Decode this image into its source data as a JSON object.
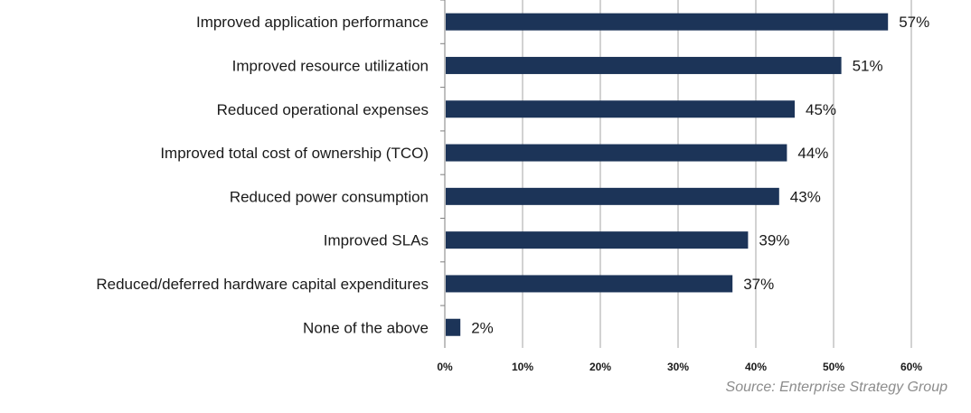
{
  "chart_data": {
    "type": "bar",
    "orientation": "horizontal",
    "categories": [
      "Improved application performance",
      "Improved resource utilization",
      "Reduced operational expenses",
      "Improved total cost of ownership (TCO)",
      "Reduced power consumption",
      "Improved SLAs",
      "Reduced/deferred hardware capital expenditures",
      "None of the above"
    ],
    "values": [
      57,
      51,
      45,
      44,
      43,
      39,
      37,
      2
    ],
    "value_labels": [
      "57%",
      "51%",
      "45%",
      "44%",
      "43%",
      "39%",
      "37%",
      "2%"
    ],
    "xlim": [
      0,
      60
    ],
    "ticks": [
      0,
      10,
      20,
      30,
      40,
      50,
      60
    ],
    "tick_labels": [
      "0%",
      "10%",
      "20%",
      "30%",
      "40%",
      "50%",
      "60%"
    ],
    "grid": "vertical",
    "title": "",
    "xlabel": "",
    "ylabel": "",
    "bar_color": "#1c3458",
    "grid_color": "#a6a6a6"
  },
  "source": "Source: Enterprise Strategy Group"
}
